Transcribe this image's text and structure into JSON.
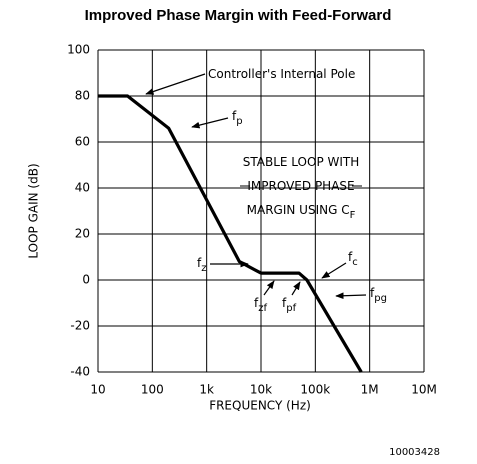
{
  "chart_data": {
    "type": "line",
    "title": "Improved Phase Margin with Feed-Forward",
    "x_label": "FREQUENCY (Hz)",
    "y_label": "LOOP GAIN (dB)",
    "log_x": true,
    "grid": true,
    "xlim": [
      10,
      10000000
    ],
    "ylim": [
      -40,
      100
    ],
    "xticks": [
      10,
      100,
      {
        "value": 1000,
        "label": "1k"
      },
      {
        "value": 10000,
        "label": "10k"
      },
      {
        "value": 100000,
        "label": "100k"
      },
      {
        "value": 1000000,
        "label": "1M"
      },
      {
        "value": 10000000,
        "label": "10M"
      }
    ],
    "yticks": [
      -40,
      -20,
      0,
      20,
      40,
      60,
      80,
      100
    ],
    "series": [
      {
        "color": "#000000",
        "x": [
          10,
          35,
          200,
          4000,
          10000,
          50000,
          70000,
          700000
        ],
        "values": [
          80,
          80,
          66,
          8,
          3,
          3,
          0,
          -40
        ]
      }
    ],
    "annotations": [
      {
        "text": "Controller's Internal Pole"
      },
      {
        "text": "f",
        "sub": "p"
      },
      {
        "text": "STABLE LOOP WITH"
      },
      {
        "text": "IMPROVED PHASE"
      },
      {
        "text": "MARGIN USING C",
        "sub": "F"
      },
      {
        "text": "f",
        "sub": "z"
      },
      {
        "text": "f",
        "sub": "zf"
      },
      {
        "text": "f",
        "sub": "pf"
      },
      {
        "text": "f",
        "sub": "c"
      },
      {
        "text": "f",
        "sub": "pg"
      }
    ],
    "figure_id": "10003428"
  }
}
